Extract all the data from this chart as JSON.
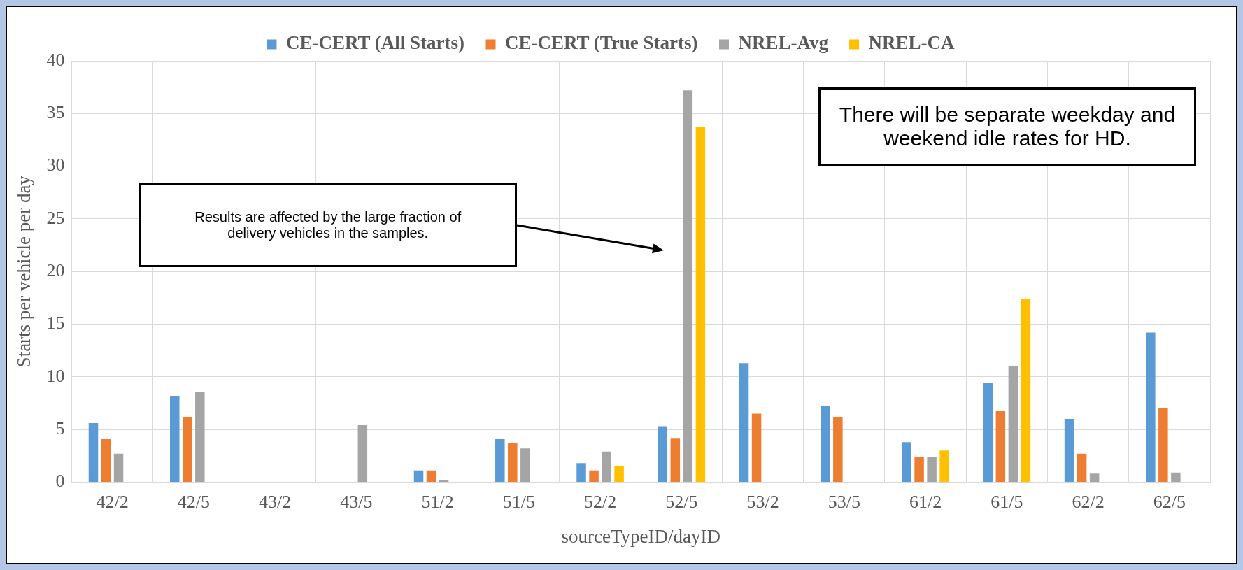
{
  "chart_data": {
    "type": "bar",
    "xlabel": "sourceTypeID/dayID",
    "ylabel": "Starts per vehicle per day",
    "categories": [
      "42/2",
      "42/5",
      "43/2",
      "43/5",
      "51/2",
      "51/5",
      "52/2",
      "52/5",
      "53/2",
      "53/5",
      "61/2",
      "61/5",
      "62/2",
      "62/5"
    ],
    "series": [
      {
        "name": "CE-CERT (All Starts)",
        "color": "#5b9bd5",
        "values": [
          5.6,
          8.2,
          null,
          null,
          1.1,
          4.1,
          1.8,
          5.3,
          11.3,
          7.2,
          3.8,
          9.4,
          6.0,
          14.2
        ]
      },
      {
        "name": "CE-CERT (True Starts)",
        "color": "#ed7d31",
        "values": [
          4.1,
          6.2,
          null,
          null,
          1.1,
          3.7,
          1.1,
          4.2,
          6.5,
          6.2,
          2.4,
          6.8,
          2.7,
          7.0
        ]
      },
      {
        "name": "NREL-Avg",
        "color": "#a5a5a5",
        "values": [
          2.7,
          8.6,
          null,
          5.4,
          0.2,
          3.2,
          2.9,
          37.2,
          null,
          null,
          2.4,
          11.0,
          0.8,
          0.9
        ]
      },
      {
        "name": "NREL-CA",
        "color": "#ffc000",
        "values": [
          null,
          null,
          null,
          null,
          null,
          null,
          1.5,
          33.7,
          null,
          null,
          3.0,
          17.4,
          null,
          null
        ]
      }
    ],
    "ylim": [
      0,
      40
    ],
    "yticks": [
      0,
      5,
      10,
      15,
      20,
      25,
      30,
      35,
      40
    ],
    "grid": true,
    "legend": "top",
    "annotations": [
      "There will be separate weekday and weekend idle rates for HD.",
      "Results are affected by the large fraction of delivery vehicles in the samples."
    ]
  }
}
